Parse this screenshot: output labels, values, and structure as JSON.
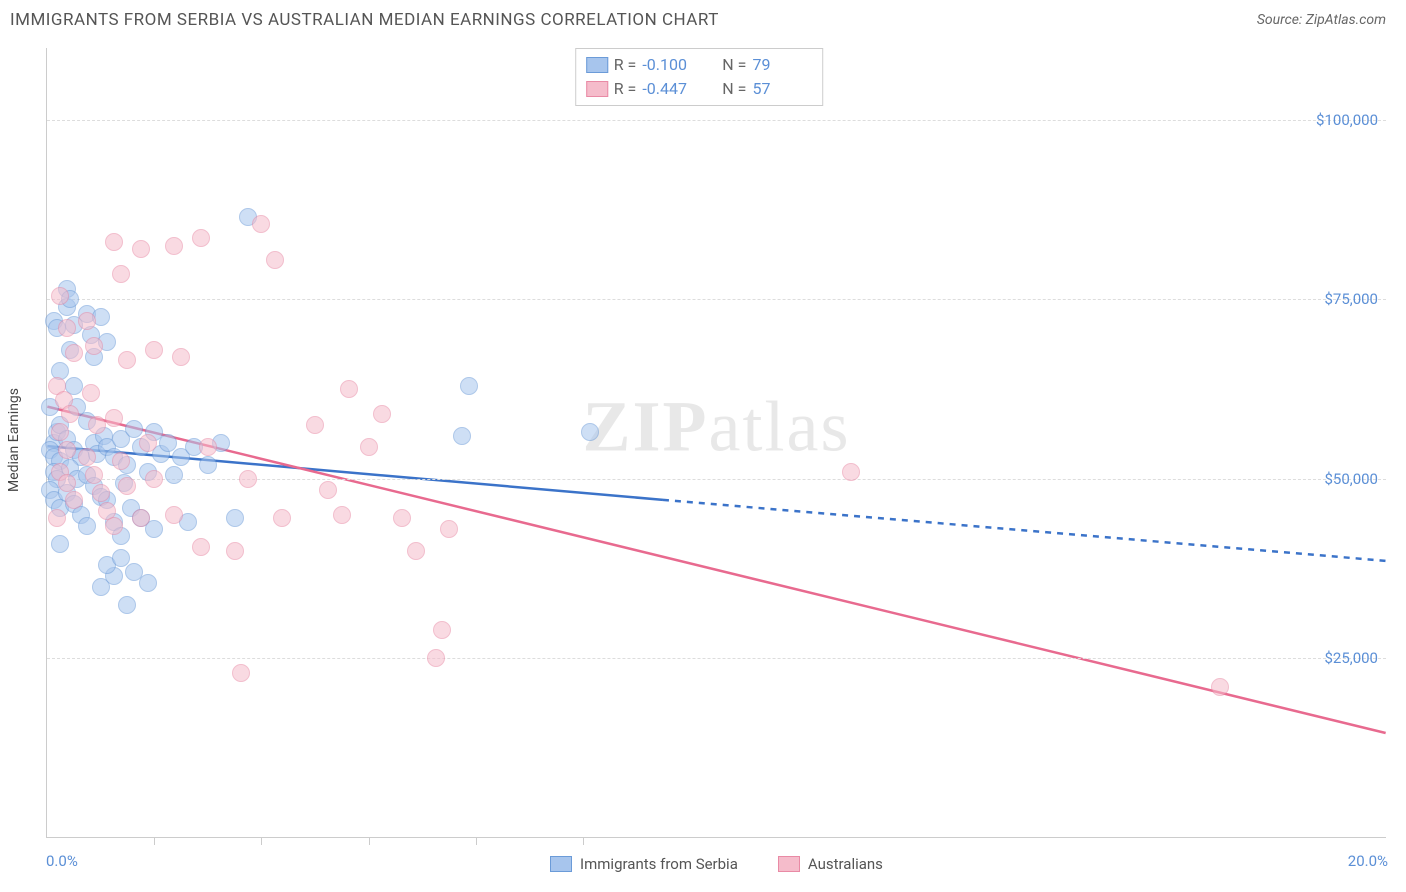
{
  "title": "IMMIGRANTS FROM SERBIA VS AUSTRALIAN MEDIAN EARNINGS CORRELATION CHART",
  "source": "Source: ZipAtlas.com",
  "watermark": {
    "bold": "ZIP",
    "light": "atlas"
  },
  "chart": {
    "type": "scatter",
    "background_color": "#ffffff",
    "grid_color": "#dddddd",
    "border_color": "#cccccc",
    "y_axis_label": "Median Earnings",
    "x_axis": {
      "min": 0,
      "max": 20,
      "label_min": "0.0%",
      "label_max": "20.0%",
      "small_ticks_x": [
        1.6,
        3.2,
        4.8,
        6.4,
        8.0
      ],
      "label_color": "#5b8fd6",
      "label_fontsize": 15
    },
    "y_axis": {
      "min": 0,
      "max": 110000,
      "ticks": [
        {
          "value": 25000,
          "label": "$25,000"
        },
        {
          "value": 50000,
          "label": "$50,000"
        },
        {
          "value": 75000,
          "label": "$75,000"
        },
        {
          "value": 100000,
          "label": "$100,000"
        }
      ],
      "label_color": "#5b8fd6",
      "label_fontsize": 15
    },
    "series": [
      {
        "name": "Immigrants from Serbia",
        "color_fill": "#a7c5ed",
        "color_stroke": "#6b9bd8",
        "fill_opacity": 0.55,
        "marker_radius": 9,
        "r_value": "-0.100",
        "n_value": "79",
        "trend": {
          "start": {
            "x": 0,
            "y": 54500
          },
          "solid_end": {
            "x": 9.2,
            "y": 47000
          },
          "dash_end": {
            "x": 20,
            "y": 38500
          },
          "line_color": "#3b73c9",
          "line_width": 2.5,
          "dash_pattern": "6,6"
        },
        "points": [
          {
            "x": 0.1,
            "y": 72000
          },
          {
            "x": 0.15,
            "y": 71000
          },
          {
            "x": 0.2,
            "y": 65000
          },
          {
            "x": 0.1,
            "y": 55000
          },
          {
            "x": 0.15,
            "y": 56500
          },
          {
            "x": 0.2,
            "y": 57500
          },
          {
            "x": 0.05,
            "y": 54000
          },
          {
            "x": 0.1,
            "y": 53000
          },
          {
            "x": 0.2,
            "y": 52500
          },
          {
            "x": 0.1,
            "y": 51000
          },
          {
            "x": 0.15,
            "y": 50000
          },
          {
            "x": 0.05,
            "y": 48500
          },
          {
            "x": 0.1,
            "y": 47000
          },
          {
            "x": 0.2,
            "y": 46000
          },
          {
            "x": 0.3,
            "y": 74000
          },
          {
            "x": 0.3,
            "y": 76500
          },
          {
            "x": 0.35,
            "y": 75000
          },
          {
            "x": 0.4,
            "y": 71500
          },
          {
            "x": 0.35,
            "y": 68000
          },
          {
            "x": 0.4,
            "y": 63000
          },
          {
            "x": 0.45,
            "y": 60000
          },
          {
            "x": 0.3,
            "y": 55500
          },
          {
            "x": 0.4,
            "y": 54000
          },
          {
            "x": 0.5,
            "y": 53000
          },
          {
            "x": 0.35,
            "y": 51500
          },
          {
            "x": 0.45,
            "y": 50000
          },
          {
            "x": 0.3,
            "y": 48000
          },
          {
            "x": 0.4,
            "y": 46500
          },
          {
            "x": 0.5,
            "y": 45000
          },
          {
            "x": 0.6,
            "y": 73000
          },
          {
            "x": 0.65,
            "y": 70000
          },
          {
            "x": 0.7,
            "y": 67000
          },
          {
            "x": 0.6,
            "y": 58000
          },
          {
            "x": 0.7,
            "y": 55000
          },
          {
            "x": 0.75,
            "y": 53500
          },
          {
            "x": 0.6,
            "y": 50500
          },
          {
            "x": 0.7,
            "y": 49000
          },
          {
            "x": 0.8,
            "y": 47500
          },
          {
            "x": 0.6,
            "y": 43500
          },
          {
            "x": 0.8,
            "y": 72500
          },
          {
            "x": 0.9,
            "y": 69000
          },
          {
            "x": 0.85,
            "y": 56000
          },
          {
            "x": 0.9,
            "y": 54500
          },
          {
            "x": 1.0,
            "y": 53000
          },
          {
            "x": 0.9,
            "y": 47000
          },
          {
            "x": 1.0,
            "y": 44000
          },
          {
            "x": 1.1,
            "y": 55500
          },
          {
            "x": 1.2,
            "y": 52000
          },
          {
            "x": 1.15,
            "y": 49500
          },
          {
            "x": 1.25,
            "y": 46000
          },
          {
            "x": 1.1,
            "y": 42000
          },
          {
            "x": 1.3,
            "y": 57000
          },
          {
            "x": 1.4,
            "y": 54500
          },
          {
            "x": 1.5,
            "y": 51000
          },
          {
            "x": 1.4,
            "y": 44500
          },
          {
            "x": 1.6,
            "y": 56500
          },
          {
            "x": 1.7,
            "y": 53500
          },
          {
            "x": 1.6,
            "y": 43000
          },
          {
            "x": 1.8,
            "y": 55000
          },
          {
            "x": 1.9,
            "y": 50500
          },
          {
            "x": 2.0,
            "y": 53000
          },
          {
            "x": 2.1,
            "y": 44000
          },
          {
            "x": 2.2,
            "y": 54500
          },
          {
            "x": 2.4,
            "y": 52000
          },
          {
            "x": 2.6,
            "y": 55000
          },
          {
            "x": 2.8,
            "y": 44500
          },
          {
            "x": 3.0,
            "y": 86500
          },
          {
            "x": 1.0,
            "y": 36500
          },
          {
            "x": 0.8,
            "y": 35000
          },
          {
            "x": 0.9,
            "y": 38000
          },
          {
            "x": 1.1,
            "y": 39000
          },
          {
            "x": 1.3,
            "y": 37000
          },
          {
            "x": 1.5,
            "y": 35500
          },
          {
            "x": 1.2,
            "y": 32500
          },
          {
            "x": 6.3,
            "y": 63000
          },
          {
            "x": 6.2,
            "y": 56000
          },
          {
            "x": 0.05,
            "y": 60000
          },
          {
            "x": 8.1,
            "y": 56500
          },
          {
            "x": 0.2,
            "y": 41000
          }
        ]
      },
      {
        "name": "Australians",
        "color_fill": "#f5bccb",
        "color_stroke": "#e98aa5",
        "fill_opacity": 0.55,
        "marker_radius": 9,
        "r_value": "-0.447",
        "n_value": "57",
        "trend": {
          "start": {
            "x": 0,
            "y": 60000
          },
          "solid_end": {
            "x": 20,
            "y": 14500
          },
          "line_color": "#e86a8f",
          "line_width": 2.5
        },
        "points": [
          {
            "x": 0.2,
            "y": 75500
          },
          {
            "x": 0.3,
            "y": 71000
          },
          {
            "x": 0.4,
            "y": 67500
          },
          {
            "x": 0.15,
            "y": 63000
          },
          {
            "x": 0.25,
            "y": 61000
          },
          {
            "x": 0.35,
            "y": 59000
          },
          {
            "x": 0.2,
            "y": 56500
          },
          {
            "x": 0.3,
            "y": 54000
          },
          {
            "x": 0.2,
            "y": 51000
          },
          {
            "x": 0.3,
            "y": 49500
          },
          {
            "x": 0.4,
            "y": 47000
          },
          {
            "x": 0.15,
            "y": 44500
          },
          {
            "x": 0.6,
            "y": 72000
          },
          {
            "x": 0.7,
            "y": 68500
          },
          {
            "x": 0.65,
            "y": 62000
          },
          {
            "x": 0.75,
            "y": 57500
          },
          {
            "x": 0.6,
            "y": 53000
          },
          {
            "x": 0.7,
            "y": 50500
          },
          {
            "x": 0.8,
            "y": 48000
          },
          {
            "x": 0.9,
            "y": 45500
          },
          {
            "x": 1.0,
            "y": 83000
          },
          {
            "x": 1.1,
            "y": 78500
          },
          {
            "x": 1.2,
            "y": 66500
          },
          {
            "x": 1.0,
            "y": 58500
          },
          {
            "x": 1.1,
            "y": 52500
          },
          {
            "x": 1.2,
            "y": 49000
          },
          {
            "x": 1.0,
            "y": 43500
          },
          {
            "x": 1.4,
            "y": 82000
          },
          {
            "x": 1.6,
            "y": 68000
          },
          {
            "x": 1.5,
            "y": 55000
          },
          {
            "x": 1.6,
            "y": 50000
          },
          {
            "x": 1.4,
            "y": 44500
          },
          {
            "x": 1.9,
            "y": 82500
          },
          {
            "x": 2.0,
            "y": 67000
          },
          {
            "x": 1.9,
            "y": 45000
          },
          {
            "x": 2.3,
            "y": 83500
          },
          {
            "x": 2.4,
            "y": 54500
          },
          {
            "x": 2.3,
            "y": 40500
          },
          {
            "x": 2.8,
            "y": 40000
          },
          {
            "x": 3.2,
            "y": 85500
          },
          {
            "x": 3.4,
            "y": 80500
          },
          {
            "x": 3.0,
            "y": 50000
          },
          {
            "x": 3.5,
            "y": 44500
          },
          {
            "x": 2.9,
            "y": 23000
          },
          {
            "x": 4.0,
            "y": 57500
          },
          {
            "x": 4.2,
            "y": 48500
          },
          {
            "x": 4.5,
            "y": 62500
          },
          {
            "x": 4.4,
            "y": 45000
          },
          {
            "x": 5.0,
            "y": 59000
          },
          {
            "x": 5.3,
            "y": 44500
          },
          {
            "x": 5.5,
            "y": 40000
          },
          {
            "x": 5.9,
            "y": 29000
          },
          {
            "x": 5.8,
            "y": 25000
          },
          {
            "x": 6.0,
            "y": 43000
          },
          {
            "x": 12.0,
            "y": 51000
          },
          {
            "x": 17.5,
            "y": 21000
          },
          {
            "x": 4.8,
            "y": 54500
          }
        ]
      }
    ],
    "stats_box": {
      "border_color": "#cccccc",
      "r_label": "R =",
      "n_label": "N ="
    },
    "bottom_legend_labels": [
      "Immigrants from Serbia",
      "Australians"
    ]
  }
}
